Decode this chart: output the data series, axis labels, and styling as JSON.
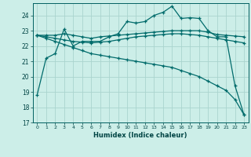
{
  "title": "",
  "xlabel": "Humidex (Indice chaleur)",
  "ylabel": "",
  "bg_color": "#cceee8",
  "line_color": "#006b6b",
  "grid_color": "#aad4ce",
  "xlim": [
    -0.5,
    23.5
  ],
  "ylim": [
    17,
    24.8
  ],
  "yticks": [
    17,
    18,
    19,
    20,
    21,
    22,
    23,
    24
  ],
  "xticks": [
    0,
    1,
    2,
    3,
    4,
    5,
    6,
    7,
    8,
    9,
    10,
    11,
    12,
    13,
    14,
    15,
    16,
    17,
    18,
    19,
    20,
    21,
    22,
    23
  ],
  "series": [
    [
      18.8,
      21.2,
      21.5,
      23.1,
      22.0,
      22.3,
      22.3,
      22.3,
      22.6,
      22.8,
      23.6,
      23.5,
      23.6,
      24.0,
      24.2,
      24.6,
      23.8,
      23.85,
      23.8,
      23.0,
      22.6,
      22.6,
      19.4,
      17.5
    ],
    [
      22.7,
      22.7,
      22.7,
      22.8,
      22.7,
      22.6,
      22.5,
      22.6,
      22.65,
      22.7,
      22.75,
      22.8,
      22.85,
      22.9,
      22.95,
      23.0,
      23.0,
      23.0,
      23.0,
      22.9,
      22.75,
      22.7,
      22.65,
      22.6
    ],
    [
      22.7,
      22.6,
      22.5,
      22.4,
      22.3,
      22.25,
      22.2,
      22.25,
      22.3,
      22.4,
      22.5,
      22.6,
      22.65,
      22.7,
      22.75,
      22.8,
      22.8,
      22.75,
      22.7,
      22.6,
      22.5,
      22.4,
      22.3,
      22.2
    ],
    [
      22.7,
      22.5,
      22.3,
      22.1,
      21.9,
      21.7,
      21.5,
      21.4,
      21.3,
      21.2,
      21.1,
      21.0,
      20.9,
      20.8,
      20.7,
      20.6,
      20.4,
      20.2,
      20.0,
      19.7,
      19.4,
      19.1,
      18.5,
      17.5
    ]
  ]
}
